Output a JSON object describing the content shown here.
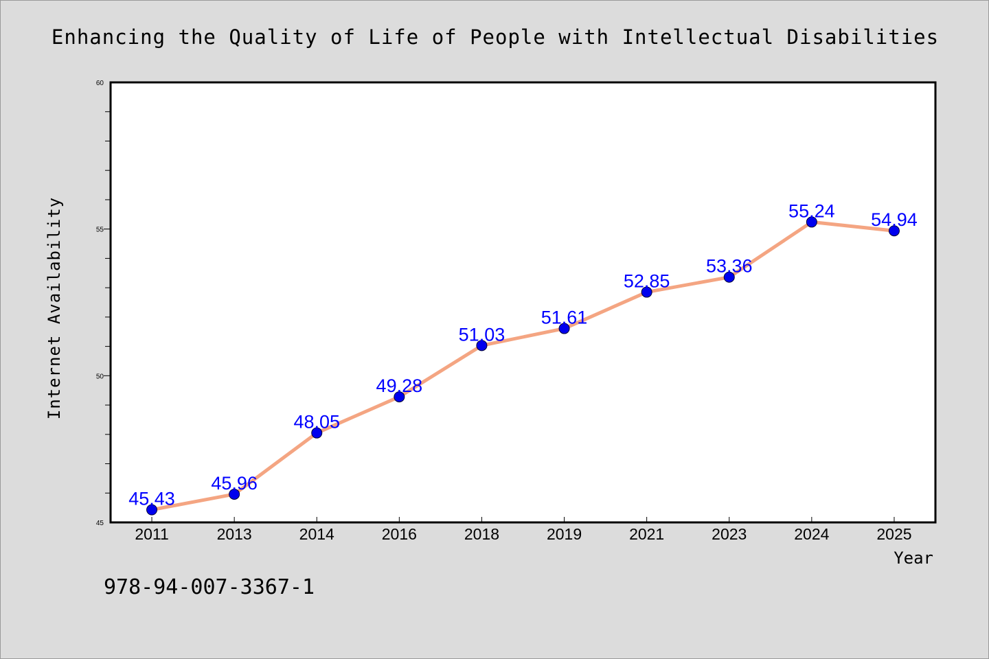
{
  "chart_data": {
    "type": "line",
    "title": "Enhancing the Quality of Life of People with Intellectual Disabilities",
    "xlabel": "Year",
    "ylabel": "Internet Availability",
    "categories": [
      "2011",
      "2013",
      "2014",
      "2016",
      "2018",
      "2019",
      "2021",
      "2023",
      "2024",
      "2025"
    ],
    "series": [
      {
        "values": [
          45.43,
          45.96,
          48.05,
          49.28,
          51.03,
          51.61,
          52.85,
          53.36,
          55.24,
          54.94
        ],
        "labels": [
          "45.43",
          "45.96",
          "48.05",
          "49.28",
          "51.03",
          "51.61",
          "52.85",
          "53.36",
          "55.24",
          "54.94"
        ],
        "line_color": "#f4a582",
        "marker_color": "#0000ee",
        "label_color": "#0000ff"
      }
    ],
    "ylim": [
      45,
      60
    ],
    "yticks": [
      "45",
      "50",
      "55",
      "60"
    ],
    "y_minor_step": 1,
    "grid": false,
    "legend": "none",
    "annotation": "978-94-007-3367-1"
  }
}
